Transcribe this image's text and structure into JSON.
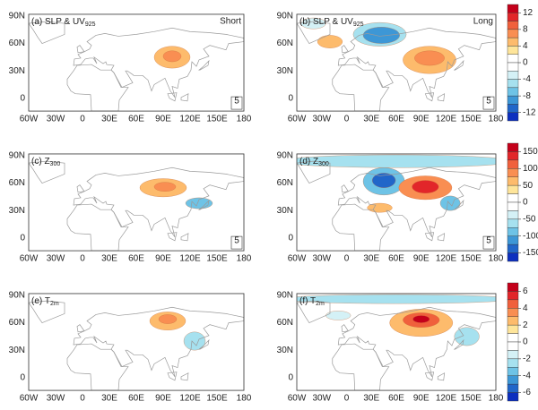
{
  "panels": [
    {
      "label": "(a) SLP & UV",
      "subscript": "925",
      "tag": "Short",
      "ref": "5"
    },
    {
      "label": "(b) SLP & UV",
      "subscript": "925",
      "tag": "Long",
      "ref": "5"
    },
    {
      "label": "(c) Z",
      "subscript": "300",
      "ref": "5"
    },
    {
      "label": "(d) Z",
      "subscript": "300",
      "ref": "5"
    },
    {
      "label": "(e) T",
      "subscript": "2m"
    },
    {
      "label": "(f) T",
      "subscript": "2m"
    }
  ],
  "lat_labels": [
    "90N",
    "60N",
    "30N",
    "0"
  ],
  "lon_labels": [
    "60W",
    "30W",
    "0",
    "30E",
    "60E",
    "90E",
    "120E",
    "150E",
    "180"
  ],
  "colorbars": [
    {
      "ticks": [
        12,
        8,
        4,
        0,
        -4,
        -8,
        -12
      ]
    },
    {
      "ticks": [
        150,
        100,
        50,
        0,
        -50,
        -100,
        -150
      ]
    },
    {
      "ticks": [
        6,
        4,
        2,
        0,
        -2,
        -4,
        -6
      ]
    }
  ],
  "colorbar_colors": [
    "#c4001a",
    "#e2262a",
    "#f0603c",
    "#f98e52",
    "#fdbb6c",
    "#fee59a",
    "#ffffff",
    "#ffffff",
    "#d4f1f6",
    "#a6e1ef",
    "#6ec3e6",
    "#3d97d6",
    "#2166c9",
    "#0c2fbf"
  ]
}
